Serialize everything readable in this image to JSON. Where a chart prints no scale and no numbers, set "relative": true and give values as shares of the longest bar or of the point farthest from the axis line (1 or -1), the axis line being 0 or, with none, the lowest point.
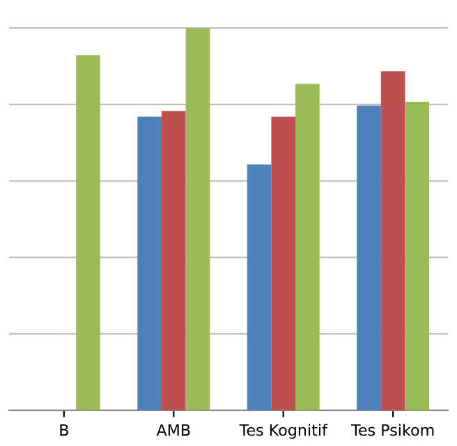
{
  "chart_data": {
    "type": "bar",
    "relative": true,
    "grid": "y",
    "categories": [
      "B",
      "AMB",
      "Tes Kognitif",
      "Tes Psikom"
    ],
    "series": [
      {
        "color": "#4f81bd",
        "values": [
          null,
          0.768,
          0.643,
          0.797
        ]
      },
      {
        "color": "#c0504d",
        "values": [
          null,
          0.783,
          0.768,
          0.887
        ]
      },
      {
        "color": "#9bbb59",
        "values": [
          0.929,
          1,
          0.854,
          0.807
        ]
      }
    ]
  }
}
